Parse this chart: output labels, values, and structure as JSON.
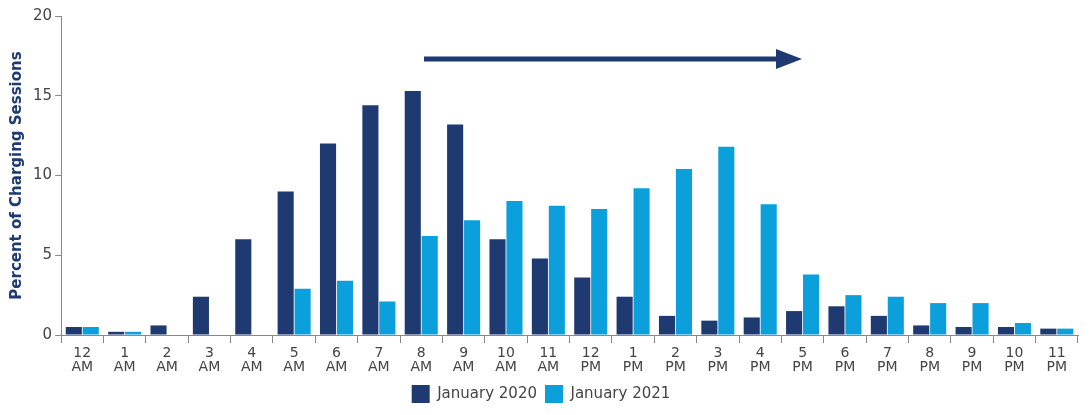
{
  "chart_data": {
    "type": "bar",
    "ylabel": "Percent of Charging Sessions",
    "categories": [
      "12 AM",
      "1 AM",
      "2 AM",
      "3 AM",
      "4 AM",
      "5 AM",
      "6 AM",
      "7 AM",
      "8 AM",
      "9 AM",
      "10 AM",
      "11 AM",
      "12 PM",
      "1 PM",
      "2 PM",
      "3 PM",
      "4 PM",
      "5 PM",
      "6 PM",
      "7 PM",
      "8 PM",
      "9 PM",
      "10 PM",
      "11 PM"
    ],
    "series": [
      {
        "name": "January 2020",
        "color": "#1f3a70",
        "values": [
          0.5,
          0.2,
          0.6,
          2.4,
          6.0,
          9.0,
          12.0,
          14.4,
          15.3,
          13.2,
          6.0,
          4.8,
          3.6,
          2.4,
          1.2,
          0.9,
          1.1,
          1.5,
          1.8,
          1.2,
          0.6,
          0.5,
          0.5,
          0.4
        ]
      },
      {
        "name": "January 2021",
        "color": "#0ba0dc",
        "values": [
          0.5,
          0.2,
          0,
          0,
          0,
          2.9,
          3.4,
          2.1,
          6.2,
          7.2,
          8.4,
          8.1,
          7.9,
          9.2,
          10.4,
          11.8,
          8.2,
          3.8,
          2.5,
          2.4,
          2.0,
          2.0,
          0.75,
          0.4
        ]
      }
    ],
    "ylim": [
      0,
      20
    ],
    "yticks": [
      0,
      5,
      10,
      15,
      20
    ],
    "grid": false,
    "legend": "bottom"
  }
}
